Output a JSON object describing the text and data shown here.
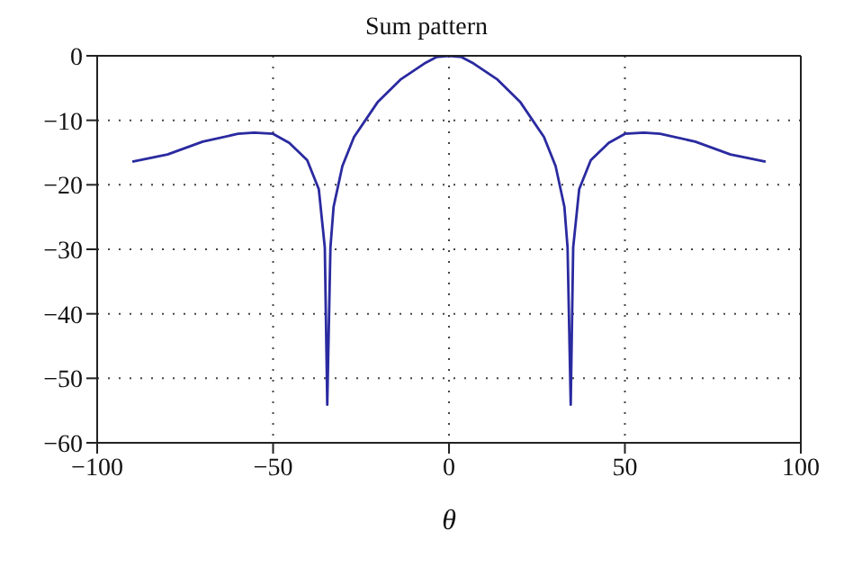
{
  "chart_data": {
    "type": "line",
    "title": "Sum pattern",
    "xlabel": "θ",
    "xlim": [
      -100,
      100
    ],
    "xticks": [
      -100,
      -50,
      0,
      50,
      100
    ],
    "ylim": [
      -60,
      0
    ],
    "yticks": [
      -60,
      -50,
      -40,
      -30,
      -20,
      -10,
      0
    ],
    "grid": true,
    "marker": "none",
    "line_style": "solid",
    "series": [
      {
        "color": "#2a2aa0",
        "x": [
          -90,
          -80,
          -70,
          -60,
          -55.4,
          -50,
          -45.4,
          -40.3,
          -37,
          -35.3,
          -34.6,
          -33.7,
          -32.8,
          -30.3,
          -27,
          -20.3,
          -13.6,
          -7,
          -3.6,
          0,
          3.6,
          7,
          13.6,
          20.3,
          27,
          30.3,
          32.8,
          33.7,
          34.6,
          35.3,
          37,
          40.3,
          45.4,
          50,
          55.4,
          60,
          70,
          80,
          90
        ],
        "values": [
          -16.4,
          -15.3,
          -13.3,
          -12.1,
          -11.9,
          -12.1,
          -13.5,
          -16.2,
          -20.7,
          -29.7,
          -54.1,
          -29.7,
          -23.4,
          -17.1,
          -12.6,
          -7.2,
          -3.6,
          -1.2,
          -0.2,
          0,
          -0.2,
          -1.2,
          -3.6,
          -7.2,
          -12.6,
          -17.1,
          -23.4,
          -29.7,
          -54.1,
          -29.7,
          -20.7,
          -16.2,
          -13.5,
          -12.1,
          -11.9,
          -12.1,
          -13.3,
          -15.3,
          -16.4
        ]
      }
    ]
  }
}
